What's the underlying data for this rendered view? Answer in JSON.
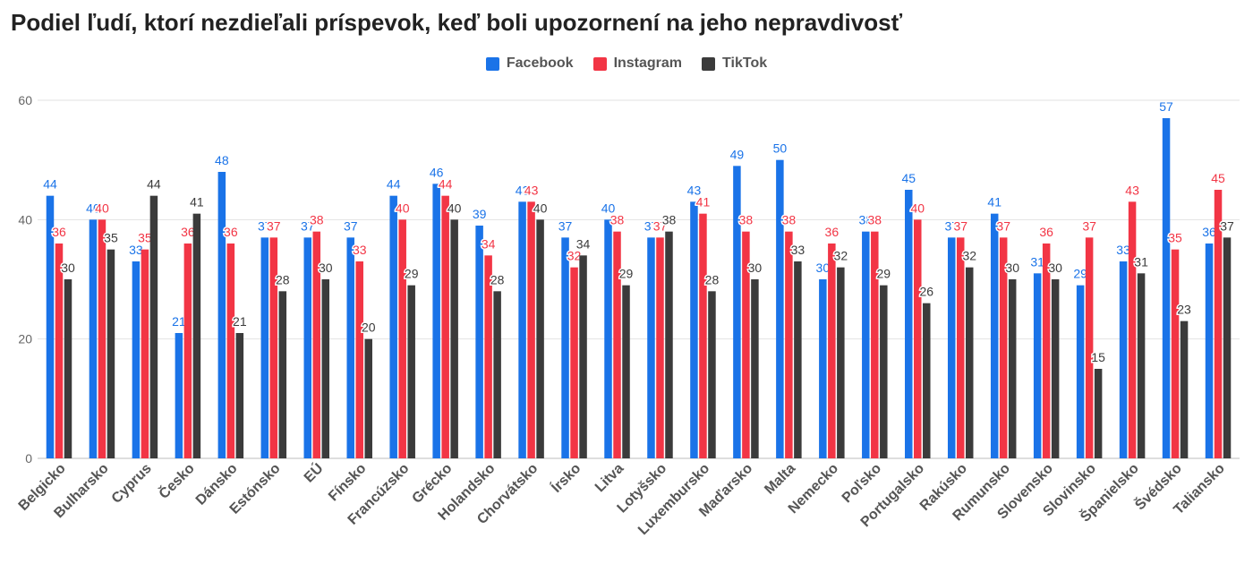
{
  "chart_data": {
    "type": "bar",
    "title": "Podiel ľudí, ktorí nezdieľali príspevok, keď boli upozornení na jeho nepravdivosť",
    "xlabel": "",
    "ylabel": "",
    "ylim": [
      0,
      60
    ],
    "yticks": [
      0,
      20,
      40,
      60
    ],
    "grid": true,
    "legend_position": "top",
    "categories": [
      "Belgicko",
      "Bulharsko",
      "Cyprus",
      "Česko",
      "Dánsko",
      "Estónsko",
      "EÚ",
      "Fínsko",
      "Francúzsko",
      "Grécko",
      "Holandsko",
      "Chorvátsko",
      "Írsko",
      "Litva",
      "Lotyšsko",
      "Luxembursko",
      "Maďarsko",
      "Malta",
      "Nemecko",
      "Poľsko",
      "Portugalsko",
      "Rakúsko",
      "Rumunsko",
      "Slovensko",
      "Slovinsko",
      "Španielsko",
      "Švédsko",
      "Taliansko"
    ],
    "series": [
      {
        "name": "Facebook",
        "color": "#1a73e8",
        "values": [
          44,
          40,
          33,
          21,
          48,
          37,
          37,
          37,
          44,
          46,
          39,
          43,
          37,
          40,
          37,
          43,
          49,
          50,
          30,
          38,
          45,
          37,
          41,
          31,
          29,
          33,
          57,
          36
        ]
      },
      {
        "name": "Instagram",
        "color": "#f23545",
        "values": [
          36,
          40,
          35,
          36,
          36,
          37,
          38,
          33,
          40,
          44,
          34,
          43,
          32,
          38,
          37,
          41,
          38,
          38,
          36,
          38,
          40,
          37,
          37,
          36,
          37,
          43,
          35,
          45
        ]
      },
      {
        "name": "TikTok",
        "color": "#3b3b3b",
        "values": [
          30,
          35,
          44,
          41,
          21,
          28,
          30,
          20,
          29,
          40,
          28,
          40,
          34,
          29,
          38,
          28,
          30,
          33,
          32,
          29,
          26,
          32,
          30,
          30,
          15,
          31,
          23,
          37
        ]
      }
    ]
  }
}
